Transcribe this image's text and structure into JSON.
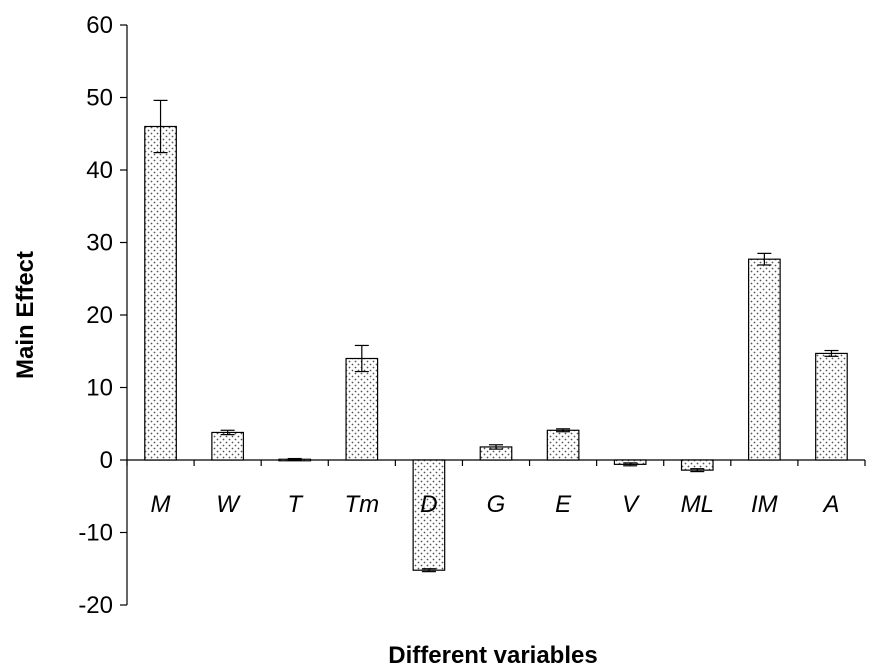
{
  "chart_data": {
    "type": "bar",
    "title": "",
    "xlabel": "Different variables",
    "ylabel": "Main Effect",
    "ylim": [
      -20,
      60
    ],
    "yticks": [
      -20,
      -10,
      0,
      10,
      20,
      30,
      40,
      50,
      60
    ],
    "categories": [
      "M",
      "W",
      "T",
      "Tm",
      "D",
      "G",
      "E",
      "V",
      "ML",
      "IM",
      "A"
    ],
    "series": [
      {
        "values": [
          46.0,
          3.8,
          0.1,
          14.0,
          -15.2,
          1.8,
          4.1,
          -0.6,
          -1.4,
          27.7,
          14.7
        ],
        "error": [
          3.6,
          0.3,
          0.1,
          1.8,
          0.2,
          0.3,
          0.2,
          0.2,
          0.2,
          0.8,
          0.4
        ]
      }
    ],
    "bar_fill": "dotted-gray",
    "grid": false,
    "legend": "none"
  }
}
